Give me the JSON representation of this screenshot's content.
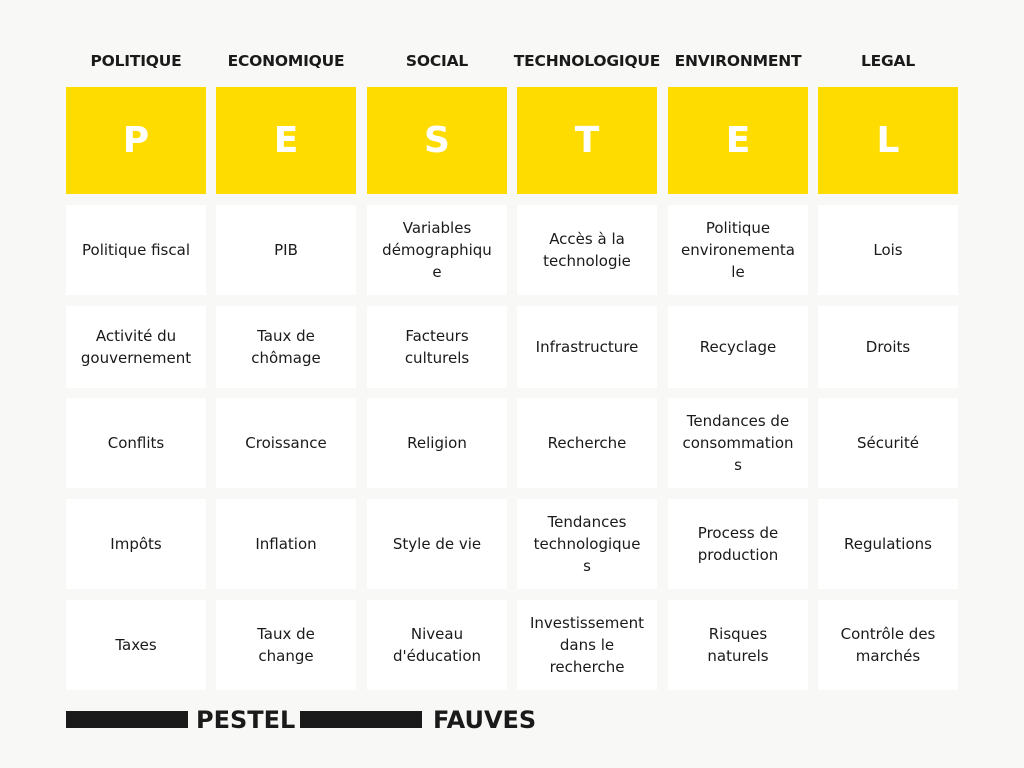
{
  "columns": [
    {
      "header": "POLITIQUE",
      "letter": "P",
      "items": [
        "Politique fiscal",
        "Activité du\ngouvernement",
        "Conflits",
        "Impôts",
        "Taxes"
      ]
    },
    {
      "header": "ECONOMIQUE",
      "letter": "E",
      "items": [
        "PIB",
        "Taux de\nchômage",
        "Croissance",
        "Inflation",
        "Taux de\nchange"
      ]
    },
    {
      "header": "SOCIAL",
      "letter": "S",
      "items": [
        "Variables\ndémographiqu\ne",
        "Facteurs\nculturels",
        "Religion",
        "Style de vie",
        "Niveau\nd'éducation"
      ]
    },
    {
      "header": "TECHNOLOGIQUE",
      "letter": "T",
      "items": [
        "Accès à la\ntechnologie",
        "Infrastructure",
        "Recherche",
        "Tendances\ntechnologique\ns",
        "Investissement\ndans le\nrecherche"
      ]
    },
    {
      "header": "ENVIRONMENT",
      "letter": "E",
      "items": [
        "Politique\nenvironementa\nle",
        "Recyclage",
        "Tendances de\nconsommation\ns",
        "Process de\nproduction",
        "Risques\nnaturels"
      ]
    },
    {
      "header": "LEGAL",
      "letter": "L",
      "items": [
        "Lois",
        "Droits",
        "Sécurité",
        "Regulations",
        "Contrôle des\nmarchés"
      ]
    }
  ],
  "footer": {
    "left_text": "PESTEL",
    "right_text": "FAUVES"
  },
  "colors": {
    "background": "#f8f8f6",
    "accent_yellow": "#ffdc00",
    "cell_background": "#ffffff",
    "text_dark": "#1a1a1a",
    "letter_text": "#ffffff"
  }
}
